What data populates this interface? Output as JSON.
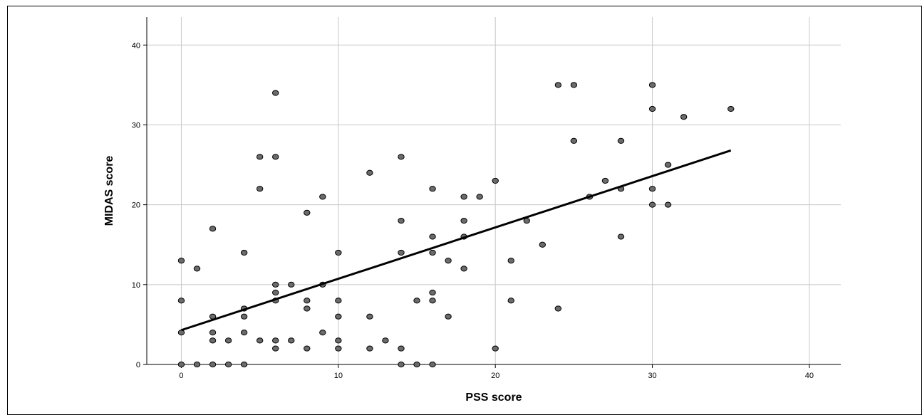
{
  "chart_data": {
    "type": "scatter",
    "xlabel": "PSS score",
    "ylabel": "MIDAS score",
    "xlim": [
      -2.2,
      42
    ],
    "ylim": [
      0,
      43.5
    ],
    "xticks": [
      0,
      10,
      20,
      30,
      40
    ],
    "yticks": [
      0,
      10,
      20,
      30,
      40
    ],
    "grid": true,
    "colors": {
      "point_fill": "#6b6b6b",
      "point_stroke": "#000000",
      "fit_line": "#000000",
      "grid": "#c8c8c8",
      "axis": "#000000"
    },
    "points": [
      {
        "x": 0,
        "y": 0
      },
      {
        "x": 0,
        "y": 4
      },
      {
        "x": 0,
        "y": 8
      },
      {
        "x": 0,
        "y": 13
      },
      {
        "x": 1,
        "y": 0
      },
      {
        "x": 1,
        "y": 12
      },
      {
        "x": 2,
        "y": 0
      },
      {
        "x": 2,
        "y": 3
      },
      {
        "x": 2,
        "y": 4
      },
      {
        "x": 2,
        "y": 6
      },
      {
        "x": 2,
        "y": 17
      },
      {
        "x": 3,
        "y": 0
      },
      {
        "x": 3,
        "y": 3
      },
      {
        "x": 4,
        "y": 0
      },
      {
        "x": 4,
        "y": 4
      },
      {
        "x": 4,
        "y": 6
      },
      {
        "x": 4,
        "y": 7
      },
      {
        "x": 4,
        "y": 14
      },
      {
        "x": 5,
        "y": 3
      },
      {
        "x": 5,
        "y": 22
      },
      {
        "x": 5,
        "y": 26
      },
      {
        "x": 6,
        "y": 2
      },
      {
        "x": 6,
        "y": 3
      },
      {
        "x": 6,
        "y": 8
      },
      {
        "x": 6,
        "y": 9
      },
      {
        "x": 6,
        "y": 10
      },
      {
        "x": 6,
        "y": 26
      },
      {
        "x": 6,
        "y": 34
      },
      {
        "x": 7,
        "y": 3
      },
      {
        "x": 7,
        "y": 10
      },
      {
        "x": 8,
        "y": 2
      },
      {
        "x": 8,
        "y": 7
      },
      {
        "x": 8,
        "y": 8
      },
      {
        "x": 8,
        "y": 19
      },
      {
        "x": 9,
        "y": 4
      },
      {
        "x": 9,
        "y": 10
      },
      {
        "x": 9,
        "y": 21
      },
      {
        "x": 10,
        "y": 2
      },
      {
        "x": 10,
        "y": 3
      },
      {
        "x": 10,
        "y": 6
      },
      {
        "x": 10,
        "y": 8
      },
      {
        "x": 10,
        "y": 14
      },
      {
        "x": 12,
        "y": 2
      },
      {
        "x": 12,
        "y": 6
      },
      {
        "x": 12,
        "y": 24
      },
      {
        "x": 13,
        "y": 3
      },
      {
        "x": 14,
        "y": 0
      },
      {
        "x": 14,
        "y": 2
      },
      {
        "x": 14,
        "y": 14
      },
      {
        "x": 14,
        "y": 18
      },
      {
        "x": 14,
        "y": 26
      },
      {
        "x": 15,
        "y": 0
      },
      {
        "x": 15,
        "y": 8
      },
      {
        "x": 16,
        "y": 0
      },
      {
        "x": 16,
        "y": 8
      },
      {
        "x": 16,
        "y": 9
      },
      {
        "x": 16,
        "y": 14
      },
      {
        "x": 16,
        "y": 16
      },
      {
        "x": 16,
        "y": 22
      },
      {
        "x": 17,
        "y": 6
      },
      {
        "x": 17,
        "y": 13
      },
      {
        "x": 18,
        "y": 12
      },
      {
        "x": 18,
        "y": 16
      },
      {
        "x": 18,
        "y": 18
      },
      {
        "x": 18,
        "y": 21
      },
      {
        "x": 19,
        "y": 21
      },
      {
        "x": 20,
        "y": 2
      },
      {
        "x": 20,
        "y": 23
      },
      {
        "x": 21,
        "y": 8
      },
      {
        "x": 21,
        "y": 13
      },
      {
        "x": 22,
        "y": 18
      },
      {
        "x": 23,
        "y": 15
      },
      {
        "x": 24,
        "y": 7
      },
      {
        "x": 24,
        "y": 35
      },
      {
        "x": 25,
        "y": 28
      },
      {
        "x": 25,
        "y": 35
      },
      {
        "x": 26,
        "y": 21
      },
      {
        "x": 27,
        "y": 23
      },
      {
        "x": 28,
        "y": 16
      },
      {
        "x": 28,
        "y": 22
      },
      {
        "x": 28,
        "y": 28
      },
      {
        "x": 30,
        "y": 20
      },
      {
        "x": 30,
        "y": 22
      },
      {
        "x": 30,
        "y": 32
      },
      {
        "x": 30,
        "y": 35
      },
      {
        "x": 31,
        "y": 20
      },
      {
        "x": 31,
        "y": 25
      },
      {
        "x": 32,
        "y": 31
      },
      {
        "x": 35,
        "y": 32
      }
    ],
    "fit_line": {
      "x": [
        0,
        35
      ],
      "y": [
        4.3,
        26.8
      ]
    }
  }
}
